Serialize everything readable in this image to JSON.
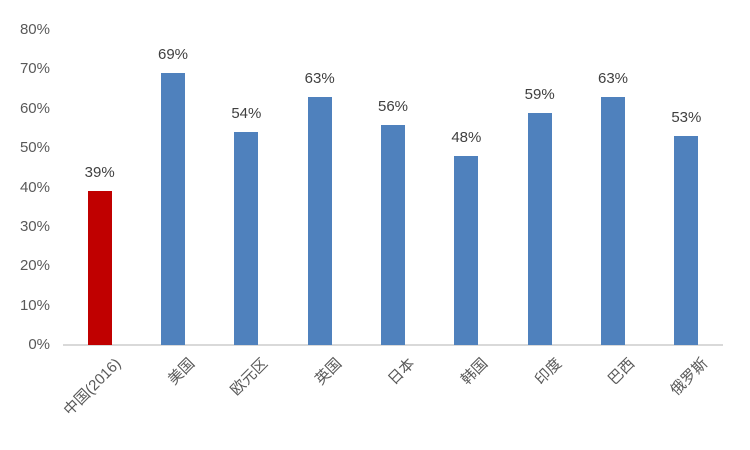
{
  "chart_data": {
    "type": "bar",
    "title": "",
    "xlabel": "",
    "ylabel": "",
    "categories": [
      "中国(2016)",
      "美国",
      "欧元区",
      "英国",
      "日本",
      "韩国",
      "印度",
      "巴西",
      "俄罗斯"
    ],
    "values": [
      39,
      69,
      54,
      63,
      56,
      48,
      59,
      63,
      53
    ],
    "data_labels": [
      "39%",
      "69%",
      "54%",
      "63%",
      "56%",
      "48%",
      "59%",
      "63%",
      "53%"
    ],
    "bar_colors": [
      "#c00000",
      "#4f81bd",
      "#4f81bd",
      "#4f81bd",
      "#4f81bd",
      "#4f81bd",
      "#4f81bd",
      "#4f81bd",
      "#4f81bd"
    ],
    "highlight_color": "#c00000",
    "series_color": "#4f81bd",
    "ylim": [
      0,
      80
    ],
    "y_tick_values": [
      0,
      10,
      20,
      30,
      40,
      50,
      60,
      70,
      80
    ],
    "y_tick_labels": [
      "0%",
      "10%",
      "20%",
      "30%",
      "40%",
      "50%",
      "60%",
      "70%",
      "80%"
    ],
    "grid": false,
    "legend": false,
    "axis_line_color": "#d9d9d9",
    "tick_label_color": "#595959",
    "data_label_color": "#404040",
    "category_label_rotation_deg": 45
  }
}
